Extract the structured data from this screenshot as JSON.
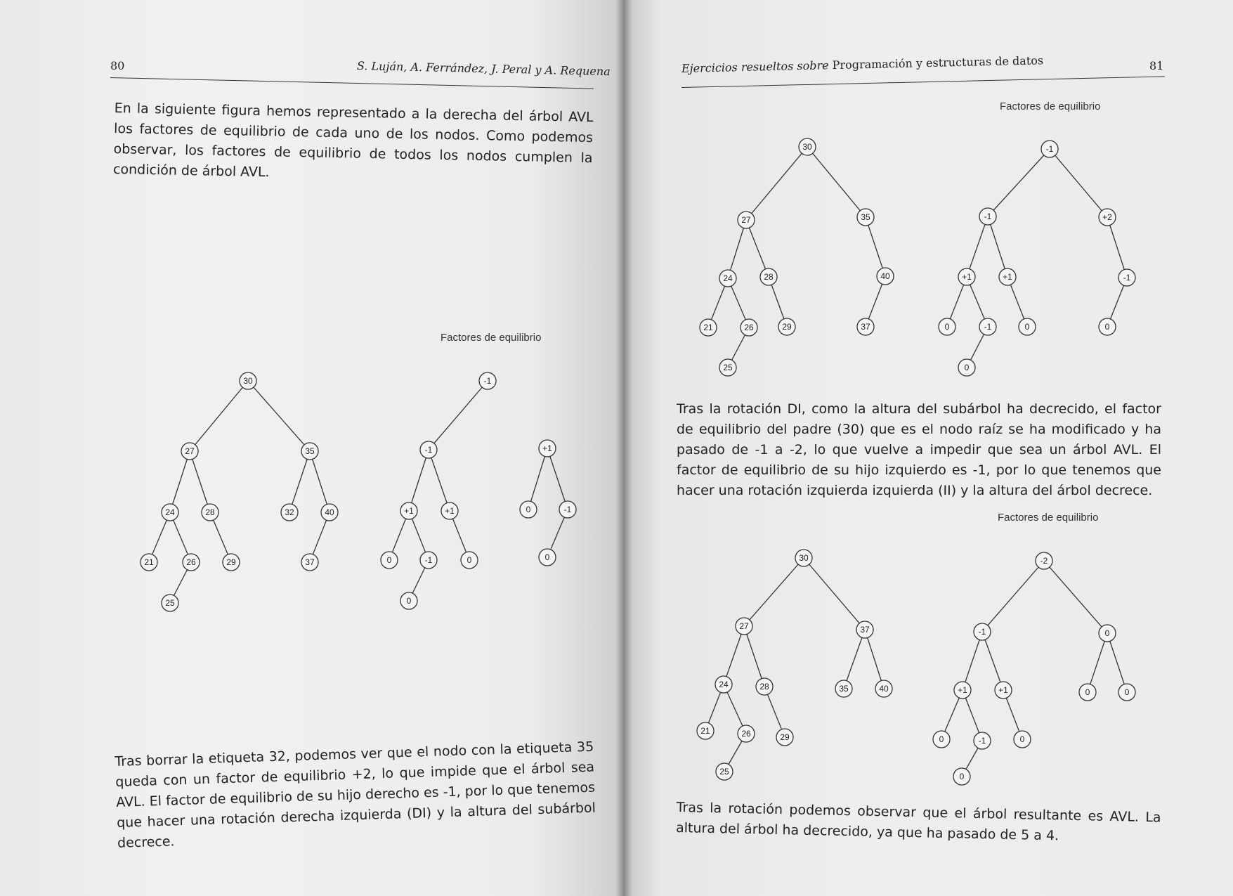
{
  "left_page": {
    "page_number": "80",
    "running_head": "S. Luján, A. Ferrández, J. Peral y A. Requena",
    "paragraph_1": "En la siguiente figura hemos representado a la derecha del árbol AVL los factores de equilibrio de cada uno de los nodos. Como podemos observar, los factores de equilibrio de todos los nodos cumplen la condición de árbol AVL.",
    "figure_caption": "Factores de equilibrio",
    "paragraph_2": "Tras borrar la etiqueta 32, podemos ver que el nodo con la etiqueta 35 queda con un factor de equilibrio +2, lo que impide que el árbol sea AVL. El factor de equilibrio de su hijo derecho es -1, por lo que tenemos que hacer una rotación derecha izquierda (DI) y la altura del subárbol decrece."
  },
  "right_page": {
    "page_number": "81",
    "running_head_italic": "Ejercicios resueltos sobre",
    "running_head_upright": "Programación y estructuras de datos",
    "figure_1_caption": "Factores de equilibrio",
    "paragraph_1": "Tras la rotación DI, como la altura del subárbol ha decrecido, el factor de equilibrio del padre (30) que es el nodo raíz se ha modificado y ha pasado de -1 a -2, lo que vuelve a impedir que sea un árbol AVL. El factor de equilibrio de su hijo izquierdo es -1, por lo que tenemos que hacer una rotación izquierda izquierda (II) y la altura del árbol decrece.",
    "figure_2_caption": "Factores de equilibrio",
    "paragraph_2": "Tras la rotación podemos observar que el árbol resultante es AVL. La altura del árbol ha decrecido, ya que ha pasado de 5 a 4."
  },
  "figures": {
    "fig_left": [
      {
        "name": "tree-keys",
        "labels": [
          "30",
          "27",
          "35",
          "24",
          "28",
          "32",
          "40",
          "21",
          "26",
          "29",
          "37",
          "25"
        ]
      },
      {
        "name": "balance-left-subtree",
        "labels": [
          "-1",
          "-1",
          "+1",
          "+1",
          "0",
          "-1",
          "0",
          "0"
        ]
      },
      {
        "name": "balance-right-subtree",
        "labels": [
          "+1",
          "0",
          "-1",
          "0"
        ]
      }
    ],
    "fig_right_1": [
      {
        "name": "tree-keys",
        "labels": [
          "30",
          "27",
          "35",
          "24",
          "28",
          "40",
          "21",
          "26",
          "29",
          "37",
          "25"
        ]
      },
      {
        "name": "balance-tree",
        "labels": [
          "-1",
          "-1",
          "+2",
          "+1",
          "+1",
          "-1",
          "0",
          "-1",
          "0",
          "0",
          "0"
        ]
      }
    ],
    "fig_right_2": [
      {
        "name": "tree-keys",
        "labels": [
          "30",
          "27",
          "37",
          "24",
          "28",
          "35",
          "40",
          "21",
          "26",
          "29",
          "25"
        ]
      },
      {
        "name": "balance-tree",
        "labels": [
          "-2",
          "-1",
          "0",
          "+1",
          "+1",
          "0",
          "0",
          "0",
          "-1",
          "0",
          "0"
        ]
      }
    ]
  }
}
